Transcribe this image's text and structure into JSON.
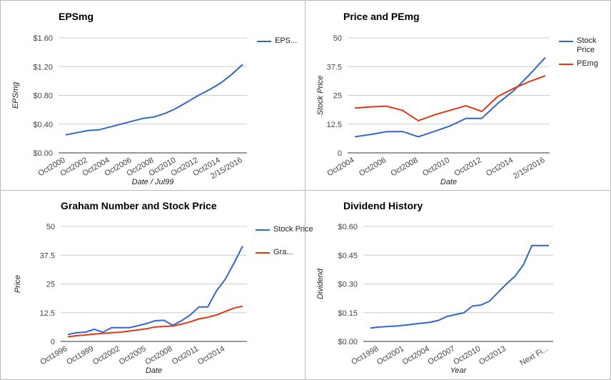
{
  "chart_data": [
    {
      "type": "line",
      "title": "EPSmg",
      "x_label": "Date / Jul99",
      "y_label": "EPSmg",
      "categories": [
        "Oct2000",
        null,
        "Oct2002",
        null,
        "Oct2004",
        null,
        "Oct2006",
        null,
        "Oct2008",
        null,
        "Oct2010",
        null,
        "Oct2012",
        null,
        "Oct2014",
        null,
        "2/15/2016"
      ],
      "series": [
        {
          "name": "EPS...",
          "color": "#3366cc",
          "values": [
            0.25,
            0.28,
            0.31,
            0.32,
            0.36,
            0.4,
            0.44,
            0.48,
            0.5,
            0.55,
            0.62,
            0.71,
            0.8,
            0.88,
            0.97,
            1.09,
            1.23
          ]
        }
      ],
      "ylim": [
        0,
        1.6
      ],
      "yticks": [
        {
          "value": 0,
          "label": "$0.00"
        },
        {
          "value": 0.4,
          "label": "$0.40"
        },
        {
          "value": 0.8,
          "label": "$0.80"
        },
        {
          "value": 1.2,
          "label": "$1.20"
        },
        {
          "value": 1.6,
          "label": "$1.60"
        }
      ],
      "grid": true,
      "legend": "right"
    },
    {
      "type": "line",
      "title": "Price and PEmg",
      "x_label": "Date",
      "y_label": "Stock Price",
      "categories": [
        "Oct2004",
        null,
        "Oct2006",
        null,
        "Oct2008",
        null,
        "Oct2010",
        null,
        "Oct2012",
        null,
        "Oct2014",
        null,
        "2/15/2016"
      ],
      "series": [
        {
          "name": "Stock Price",
          "color": "#3366cc",
          "values": [
            7,
            8,
            9.2,
            9.3,
            7,
            9.3,
            11.7,
            15,
            15,
            21.5,
            27,
            34,
            41.5
          ]
        },
        {
          "name": "PEmg",
          "color": "#dc3912",
          "values": [
            19.5,
            20,
            20.3,
            18.5,
            14,
            16.5,
            18.5,
            20.5,
            18,
            24.5,
            28,
            31,
            33.5
          ]
        }
      ],
      "ylim": [
        0,
        50
      ],
      "yticks": [
        0,
        12.5,
        25,
        37.5,
        50
      ],
      "grid": true,
      "legend": "right"
    },
    {
      "type": "line",
      "title": "Graham Number and Stock Price",
      "x_label": "Date",
      "y_label": "Price",
      "categories": [
        "Oct1996",
        null,
        null,
        "Oct1999",
        null,
        null,
        "Oct2002",
        null,
        null,
        "Oct2005",
        null,
        null,
        "Oct2008",
        null,
        null,
        "Oct2011",
        null,
        null,
        "Oct2014",
        null,
        null
      ],
      "series": [
        {
          "name": "Stock Price",
          "color": "#3366cc",
          "values": [
            3,
            3.8,
            4,
            5.3,
            4,
            6,
            6,
            6,
            6.8,
            7.8,
            9,
            9.2,
            7,
            9,
            11.5,
            15,
            15,
            22,
            27,
            34,
            41.5
          ]
        },
        {
          "name": "Gra...",
          "color": "#dc3912",
          "values": [
            2,
            2.5,
            2.8,
            3.2,
            3.5,
            3.8,
            4,
            4.5,
            5,
            5.5,
            6.3,
            6.5,
            6.7,
            7.5,
            8.5,
            9.8,
            10.5,
            11.5,
            13,
            14.5,
            15.3
          ]
        }
      ],
      "ylim": [
        0,
        50
      ],
      "yticks": [
        0,
        12.5,
        25,
        37.5,
        50
      ],
      "grid": true,
      "legend": "right"
    },
    {
      "type": "line",
      "title": "Dividend History",
      "x_label": "Year",
      "y_label": "Dividend",
      "categories": [
        null,
        "Oct1998",
        null,
        null,
        "Oct2001",
        null,
        null,
        "Oct2004",
        null,
        null,
        "Oct2007",
        null,
        null,
        "Oct2010",
        null,
        null,
        "Oct2013",
        null,
        null,
        null,
        null,
        "Next Fi..."
      ],
      "series": [
        {
          "color": "#3366cc",
          "values": [
            0.07,
            0.075,
            0.078,
            0.08,
            0.085,
            0.09,
            0.095,
            0.1,
            0.11,
            0.13,
            0.14,
            0.15,
            0.185,
            0.19,
            0.21,
            0.255,
            0.3,
            0.34,
            0.4,
            0.5,
            0.5,
            0.5
          ]
        }
      ],
      "ylim": [
        0,
        0.6
      ],
      "yticks": [
        {
          "value": 0,
          "label": "$0.00"
        },
        {
          "value": 0.15,
          "label": "$0.15"
        },
        {
          "value": 0.3,
          "label": "$0.30"
        },
        {
          "value": 0.45,
          "label": "$0.45"
        },
        {
          "value": 0.6,
          "label": "$0.60"
        }
      ],
      "grid": true
    }
  ]
}
